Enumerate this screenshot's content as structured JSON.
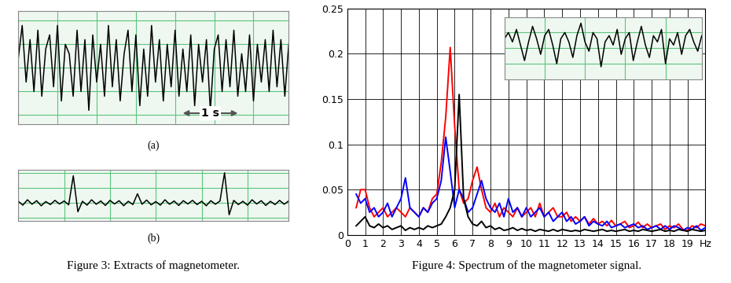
{
  "captions": [
    "Figure 3: Extracts of magnetometer.",
    "Figure 4: Spectrum of the magnetometer signal."
  ],
  "chart_data": [
    {
      "type": "line",
      "annotations": [
        "(a)",
        "1 s"
      ],
      "color": "#000000",
      "grid": true,
      "tick_labels": false,
      "values": [
        0.2,
        0.9,
        -0.3,
        0.6,
        -0.5,
        0.8,
        -0.6,
        0.4,
        0.7,
        -0.4,
        0.9,
        -0.7,
        0.5,
        0.3,
        -0.6,
        0.8,
        -0.5,
        0.6,
        -0.9,
        0.7,
        -0.3,
        0.5,
        -0.6,
        0.9,
        -0.4,
        0.6,
        -0.7,
        0.3,
        0.8,
        -0.5,
        0.7,
        -0.8,
        0.4,
        -0.6,
        0.9,
        -0.3,
        0.6,
        -0.7,
        0.5,
        -0.4,
        0.8,
        -0.6,
        0.4,
        -0.5,
        0.7,
        -0.8,
        0.5,
        -0.3,
        0.6,
        -0.9,
        0.4,
        0.7,
        -0.5,
        0.6,
        -0.4,
        0.8,
        -0.6,
        0.3,
        -0.5,
        0.7,
        -0.7,
        0.5,
        -0.3,
        0.6,
        -0.5,
        0.8,
        -0.4,
        0.6,
        -0.6,
        0.5
      ],
      "xlim": [
        0,
        69
      ],
      "xticks": [
        0,
        10,
        20,
        30,
        40,
        50,
        60
      ],
      "ylim": [
        -1.2,
        1.2
      ],
      "yticks": [
        -1,
        -0.5,
        0,
        0.5,
        1
      ]
    },
    {
      "type": "line",
      "annotations": [
        "(b)"
      ],
      "color": "#000000",
      "grid": true,
      "tick_labels": false,
      "values": [
        0.05,
        -0.08,
        0.1,
        -0.05,
        0.07,
        -0.1,
        0.04,
        -0.06,
        0.08,
        -0.04,
        0.06,
        -0.07,
        0.9,
        -0.3,
        0.05,
        -0.08,
        0.1,
        -0.05,
        0.06,
        -0.09,
        0.08,
        -0.04,
        0.07,
        -0.1,
        0.05,
        -0.06,
        0.3,
        -0.05,
        0.09,
        -0.07,
        0.04,
        -0.08,
        0.1,
        -0.05,
        0.06,
        -0.09,
        0.07,
        -0.04,
        0.08,
        -0.06,
        0.05,
        -0.1,
        0.07,
        -0.05,
        0.06,
        1.0,
        -0.4,
        0.08,
        -0.06,
        0.05,
        -0.08,
        0.1,
        -0.04,
        0.07,
        -0.09,
        0.05,
        -0.06,
        0.08,
        -0.05,
        0.06
      ],
      "xlim": [
        0,
        59
      ],
      "xticks": [
        0,
        10,
        20,
        30,
        40,
        50
      ],
      "ylim": [
        -0.6,
        1.1
      ],
      "yticks": [
        -0.5,
        0,
        0.5,
        1
      ]
    },
    {
      "type": "line",
      "grid": true,
      "x": [
        0.5,
        0.75,
        1,
        1.25,
        1.5,
        1.75,
        2,
        2.25,
        2.5,
        2.75,
        3,
        3.25,
        3.5,
        3.75,
        4,
        4.25,
        4.5,
        4.75,
        5,
        5.25,
        5.5,
        5.75,
        6,
        6.25,
        6.5,
        6.75,
        7,
        7.25,
        7.5,
        7.75,
        8,
        8.25,
        8.5,
        8.75,
        9,
        9.25,
        9.5,
        9.75,
        10,
        10.25,
        10.5,
        10.75,
        11,
        11.25,
        11.5,
        11.75,
        12,
        12.25,
        12.5,
        12.75,
        13,
        13.25,
        13.5,
        13.75,
        14,
        14.25,
        14.5,
        14.75,
        15,
        15.25,
        15.5,
        15.75,
        16,
        16.25,
        16.5,
        16.75,
        17,
        17.25,
        17.5,
        17.75,
        18,
        18.25,
        18.5,
        18.75,
        19,
        19.25,
        19.5,
        19.75,
        20
      ],
      "series": [
        {
          "color": "#ff0000",
          "values": [
            0.03,
            0.05,
            0.05,
            0.03,
            0.02,
            0.025,
            0.03,
            0.02,
            0.025,
            0.03,
            0.025,
            0.02,
            0.03,
            0.025,
            0.02,
            0.03,
            0.025,
            0.04,
            0.045,
            0.08,
            0.13,
            0.207,
            0.12,
            0.05,
            0.035,
            0.04,
            0.06,
            0.075,
            0.05,
            0.03,
            0.025,
            0.035,
            0.02,
            0.03,
            0.025,
            0.02,
            0.03,
            0.02,
            0.025,
            0.03,
            0.02,
            0.035,
            0.02,
            0.025,
            0.03,
            0.02,
            0.02,
            0.025,
            0.015,
            0.02,
            0.015,
            0.02,
            0.012,
            0.018,
            0.012,
            0.015,
            0.01,
            0.016,
            0.01,
            0.012,
            0.015,
            0.008,
            0.01,
            0.014,
            0.008,
            0.012,
            0.008,
            0.01,
            0.012,
            0.006,
            0.01,
            0.008,
            0.012,
            0.006,
            0.005,
            0.01,
            0.008,
            0.012,
            0.01
          ]
        },
        {
          "color": "#0000ff",
          "values": [
            0.045,
            0.035,
            0.04,
            0.025,
            0.03,
            0.02,
            0.025,
            0.035,
            0.02,
            0.03,
            0.04,
            0.063,
            0.03,
            0.025,
            0.02,
            0.03,
            0.025,
            0.035,
            0.04,
            0.06,
            0.108,
            0.07,
            0.03,
            0.05,
            0.04,
            0.025,
            0.03,
            0.045,
            0.06,
            0.04,
            0.03,
            0.025,
            0.035,
            0.02,
            0.04,
            0.025,
            0.03,
            0.02,
            0.03,
            0.02,
            0.025,
            0.03,
            0.02,
            0.025,
            0.015,
            0.02,
            0.025,
            0.015,
            0.02,
            0.012,
            0.015,
            0.02,
            0.01,
            0.015,
            0.012,
            0.01,
            0.015,
            0.008,
            0.01,
            0.012,
            0.008,
            0.01,
            0.012,
            0.008,
            0.01,
            0.006,
            0.008,
            0.01,
            0.006,
            0.01,
            0.006,
            0.01,
            0.008,
            0.005,
            0.008,
            0.006,
            0.01,
            0.005,
            0.008
          ]
        },
        {
          "color": "#000000",
          "values": [
            0.01,
            0.015,
            0.02,
            0.01,
            0.008,
            0.012,
            0.008,
            0.01,
            0.006,
            0.008,
            0.01,
            0.005,
            0.008,
            0.006,
            0.008,
            0.006,
            0.01,
            0.008,
            0.01,
            0.012,
            0.02,
            0.03,
            0.05,
            0.155,
            0.04,
            0.02,
            0.012,
            0.01,
            0.015,
            0.008,
            0.01,
            0.006,
            0.008,
            0.005,
            0.006,
            0.008,
            0.005,
            0.007,
            0.005,
            0.006,
            0.004,
            0.006,
            0.005,
            0.004,
            0.006,
            0.004,
            0.006,
            0.005,
            0.004,
            0.005,
            0.004,
            0.006,
            0.005,
            0.004,
            0.005,
            0.006,
            0.004,
            0.005,
            0.004,
            0.005,
            0.006,
            0.004,
            0.005,
            0.004,
            0.006,
            0.005,
            0.004,
            0.005,
            0.006,
            0.004,
            0.005,
            0.004,
            0.006,
            0.005,
            0.004,
            0.006,
            0.005,
            0.004,
            0.005
          ]
        }
      ],
      "xlim": [
        0,
        20
      ],
      "xticks": [
        0,
        1,
        2,
        3,
        4,
        5,
        6,
        7,
        8,
        9,
        10,
        11,
        12,
        13,
        14,
        15,
        16,
        17,
        18,
        19,
        {
          "value": 20,
          "label": "Hz"
        }
      ],
      "ylim": [
        0,
        0.25
      ],
      "yticks": [
        0,
        0.05,
        0.1,
        0.15,
        0.2,
        0.25
      ]
    },
    {
      "type": "line",
      "color": "#000000",
      "grid": true,
      "tick_labels": false,
      "values": [
        0.3,
        0.5,
        0.2,
        0.6,
        0.1,
        -0.4,
        0.2,
        0.7,
        0.3,
        -0.2,
        0.4,
        0.6,
        0.1,
        -0.5,
        0.3,
        0.5,
        0.2,
        -0.3,
        0.4,
        0.8,
        0.2,
        -0.1,
        0.5,
        0.3,
        -0.6,
        0.2,
        0.4,
        0.1,
        0.6,
        -0.2,
        0.3,
        0.5,
        -0.4,
        0.2,
        0.7,
        0.1,
        -0.3,
        0.4,
        0.2,
        0.6,
        -0.5,
        0.3,
        0.1,
        0.5,
        -0.2,
        0.4,
        0.6,
        0.2,
        -0.1,
        0.4
      ],
      "xlim": [
        0,
        49
      ],
      "xticks": [
        0,
        10,
        20,
        30,
        40
      ],
      "ylim": [
        -1,
        1
      ],
      "yticks": [
        -0.5,
        0,
        0.5
      ]
    }
  ]
}
